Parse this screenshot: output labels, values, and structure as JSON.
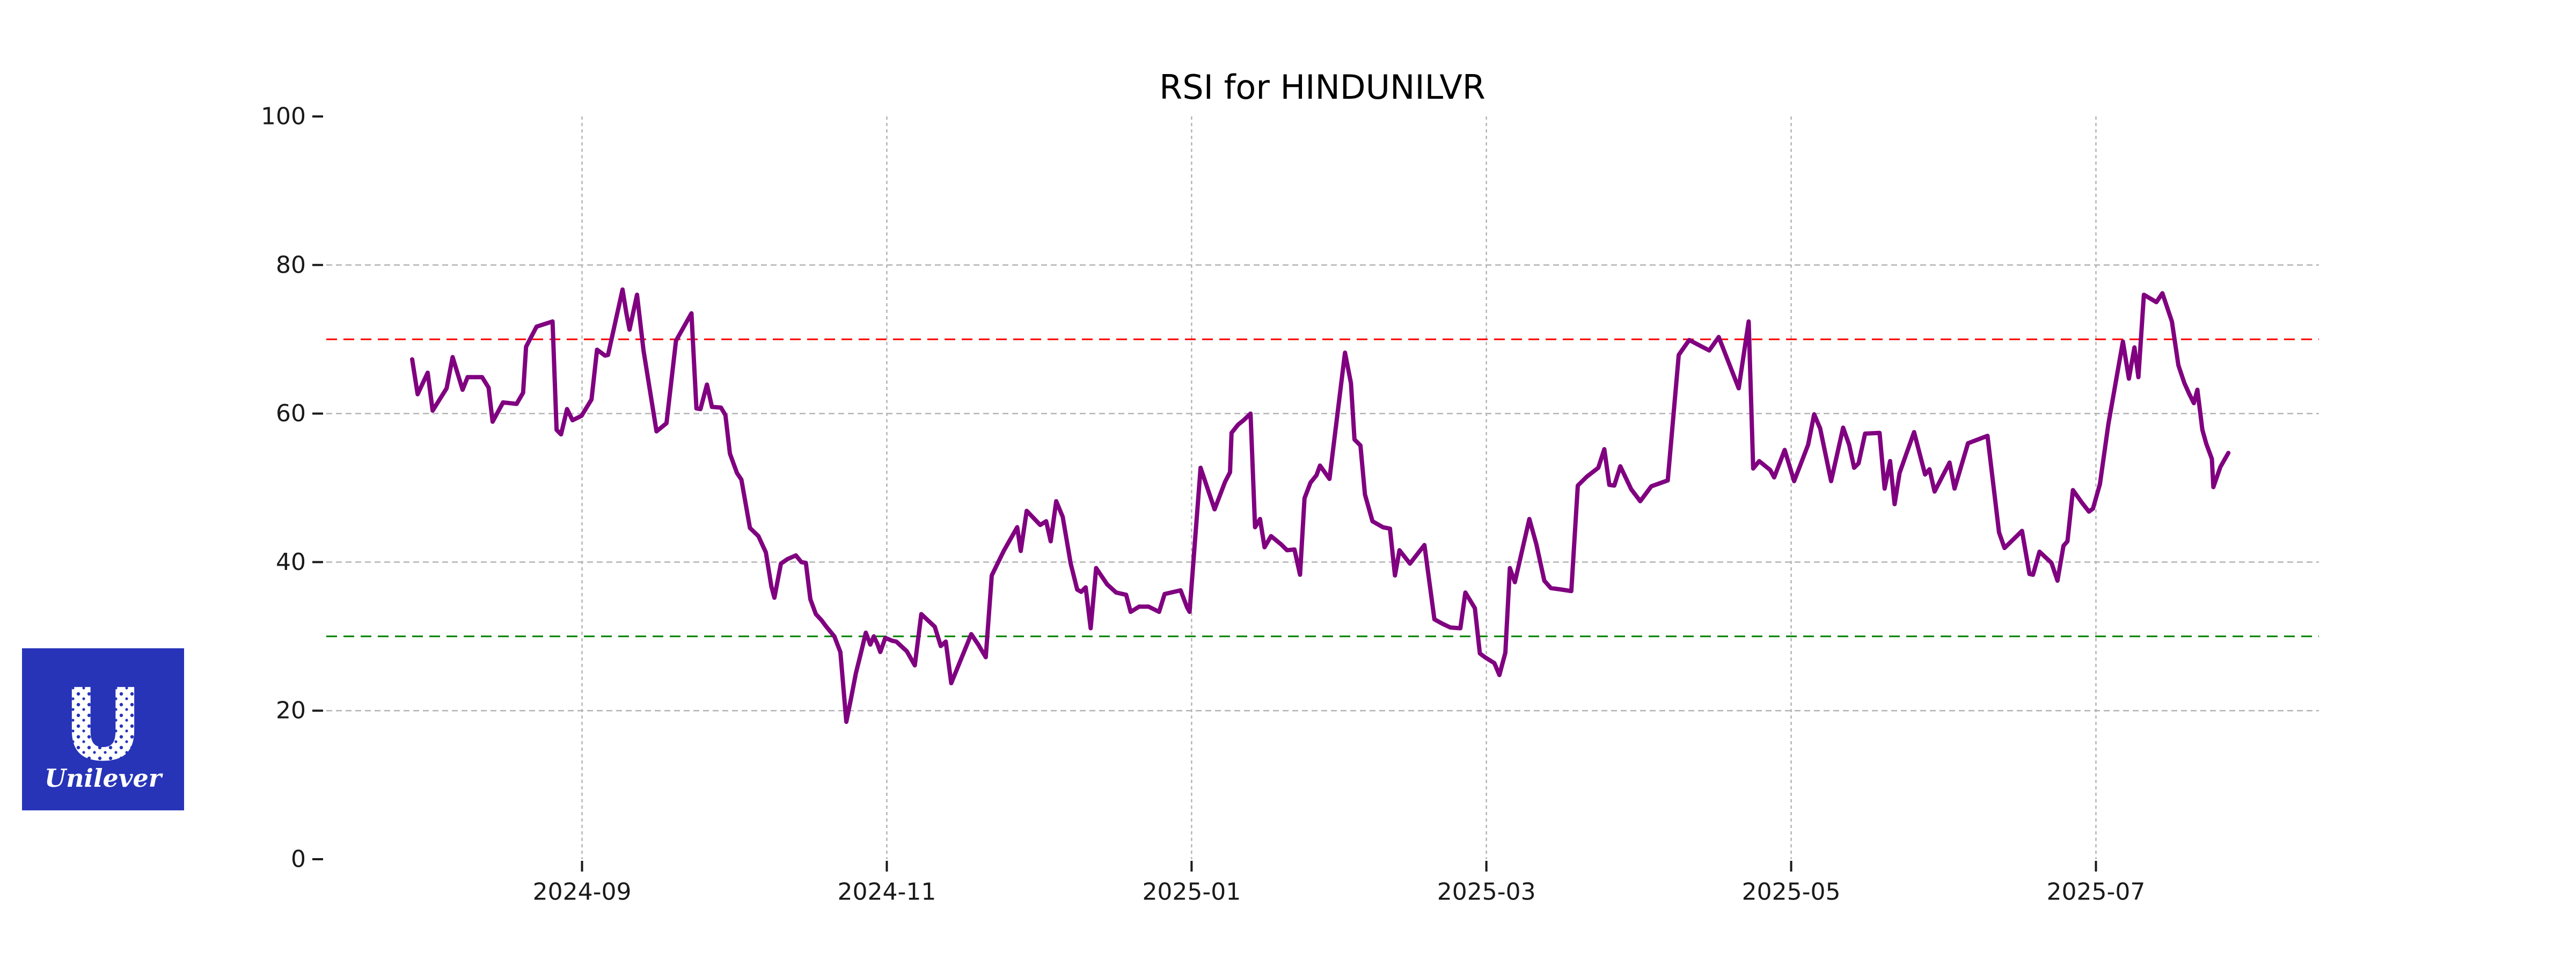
{
  "header": {
    "title": "RSI for HINDUNILVR"
  },
  "chart_data": {
    "type": "line",
    "title": "RSI for HINDUNILVR",
    "xlabel": "",
    "ylabel": "",
    "ylim": [
      0,
      100
    ],
    "yticks": [
      0,
      20,
      40,
      60,
      80,
      100
    ],
    "ygrid_values": [
      20,
      40,
      60,
      80
    ],
    "grid": true,
    "grid_color": "#b4b4b4",
    "legend_position": "none",
    "x_axis": {
      "unit": "days since 2024-07-29",
      "start_date": "2024-07-29",
      "end_date": "2025-07-27"
    },
    "xticks": [
      {
        "label": "2024-09",
        "day": 34
      },
      {
        "label": "2024-11",
        "day": 95
      },
      {
        "label": "2025-01",
        "day": 156
      },
      {
        "label": "2025-03",
        "day": 215
      },
      {
        "label": "2025-05",
        "day": 276
      },
      {
        "label": "2025-07",
        "day": 337
      }
    ],
    "reference_lines": [
      {
        "value": 70,
        "color": "#ff0000",
        "style": "dashed",
        "meaning": "overbought"
      },
      {
        "value": 30,
        "color": "#008000",
        "style": "dashed",
        "meaning": "oversold"
      }
    ],
    "series": [
      {
        "name": "RSI",
        "color": "#800080",
        "points": [
          [
            0,
            67.3
          ],
          [
            1.1,
            62.6
          ],
          [
            3.1,
            65.5
          ],
          [
            4.1,
            60.4
          ],
          [
            6.9,
            63.4
          ],
          [
            8.1,
            67.6
          ],
          [
            10.1,
            63.2
          ],
          [
            11.1,
            64.9
          ],
          [
            14,
            64.9
          ],
          [
            15.3,
            63.5
          ],
          [
            16.1,
            58.9
          ],
          [
            18.2,
            61.5
          ],
          [
            20.9,
            61.3
          ],
          [
            22.2,
            62.8
          ],
          [
            22.8,
            69
          ],
          [
            24.9,
            71.7
          ],
          [
            28.1,
            72.4
          ],
          [
            28.9,
            57.8
          ],
          [
            29.8,
            57.2
          ],
          [
            31,
            60.6
          ],
          [
            32.1,
            59.1
          ],
          [
            33.9,
            59.7
          ],
          [
            35.9,
            61.9
          ],
          [
            37,
            68.6
          ],
          [
            38.6,
            67.8
          ],
          [
            39.2,
            67.9
          ],
          [
            42.1,
            76.7
          ],
          [
            42.9,
            73.4
          ],
          [
            43.5,
            71.3
          ],
          [
            45,
            76
          ],
          [
            46.3,
            68.5
          ],
          [
            48.9,
            57.6
          ],
          [
            50.9,
            58.7
          ],
          [
            52.8,
            69.8
          ],
          [
            55.9,
            73.5
          ],
          [
            56.9,
            60.7
          ],
          [
            57.7,
            60.6
          ],
          [
            59,
            63.9
          ],
          [
            60,
            60.9
          ],
          [
            61.8,
            60.8
          ],
          [
            62.7,
            59.8
          ],
          [
            63.6,
            54.6
          ],
          [
            65,
            52
          ],
          [
            65.9,
            51.1
          ],
          [
            67.6,
            44.6
          ],
          [
            69.3,
            43.5
          ],
          [
            70.8,
            41.3
          ],
          [
            71.9,
            36.7
          ],
          [
            72.5,
            35.2
          ],
          [
            73.8,
            39.8
          ],
          [
            75.1,
            40.4
          ],
          [
            76.8,
            40.9
          ],
          [
            77.9,
            40
          ],
          [
            78.8,
            39.9
          ],
          [
            79.7,
            35
          ],
          [
            80.8,
            33
          ],
          [
            81.9,
            32.2
          ],
          [
            82.9,
            31.3
          ],
          [
            84.5,
            30
          ],
          [
            85.7,
            27.9
          ],
          [
            86.9,
            18.5
          ],
          [
            87.8,
            21.5
          ],
          [
            88.8,
            25
          ],
          [
            89.9,
            28
          ],
          [
            90.8,
            30.5
          ],
          [
            91.7,
            28.9
          ],
          [
            92.4,
            30
          ],
          [
            93.1,
            29
          ],
          [
            93.7,
            27.9
          ],
          [
            94.7,
            29.8
          ],
          [
            96.1,
            29.4
          ],
          [
            96.9,
            29.3
          ],
          [
            99,
            28
          ],
          [
            100.6,
            26.1
          ],
          [
            101.9,
            33
          ],
          [
            104.6,
            31.3
          ],
          [
            105.8,
            28.7
          ],
          [
            106.8,
            29.3
          ],
          [
            107.9,
            23.7
          ],
          [
            111.9,
            30.3
          ],
          [
            113.3,
            28.9
          ],
          [
            114.8,
            27.2
          ],
          [
            116,
            38.2
          ],
          [
            118.4,
            41.5
          ],
          [
            121.1,
            44.7
          ],
          [
            121.8,
            41.5
          ],
          [
            123,
            46.9
          ],
          [
            125.7,
            45
          ],
          [
            126.9,
            45.5
          ],
          [
            127.8,
            42.8
          ],
          [
            128.9,
            48.2
          ],
          [
            130.2,
            46.1
          ],
          [
            131.8,
            39.8
          ],
          [
            133.1,
            36.3
          ],
          [
            133.9,
            36
          ],
          [
            134.8,
            36.6
          ],
          [
            135.8,
            31.1
          ],
          [
            136.9,
            39.2
          ],
          [
            139.1,
            37
          ],
          [
            140.9,
            35.9
          ],
          [
            142.9,
            35.6
          ],
          [
            143.8,
            33.3
          ],
          [
            145.5,
            34
          ],
          [
            147.4,
            34
          ],
          [
            149.5,
            33.3
          ],
          [
            150.6,
            35.7
          ],
          [
            153.8,
            36.2
          ],
          [
            155.1,
            33.9
          ],
          [
            155.6,
            33.3
          ],
          [
            157.8,
            52.7
          ],
          [
            160.6,
            47.1
          ],
          [
            162.7,
            50.8
          ],
          [
            163.7,
            52.1
          ],
          [
            164,
            57.4
          ],
          [
            165.3,
            58.5
          ],
          [
            166.4,
            59.1
          ],
          [
            167.8,
            60
          ],
          [
            168.7,
            44.7
          ],
          [
            169.7,
            45.8
          ],
          [
            170.6,
            42
          ],
          [
            171.9,
            43.5
          ],
          [
            173.9,
            42.4
          ],
          [
            175.1,
            41.6
          ],
          [
            176.6,
            41.7
          ],
          [
            177.7,
            38.3
          ],
          [
            178.6,
            48.6
          ],
          [
            179.8,
            50.7
          ],
          [
            181,
            51.7
          ],
          [
            181.7,
            53
          ],
          [
            183.6,
            51.2
          ],
          [
            186.7,
            68.2
          ],
          [
            187.9,
            64.1
          ],
          [
            188.6,
            56.5
          ],
          [
            189.8,
            55.7
          ],
          [
            190.7,
            49.1
          ],
          [
            192.2,
            45.5
          ],
          [
            194.3,
            44.7
          ],
          [
            195.7,
            44.5
          ],
          [
            196.7,
            38.2
          ],
          [
            197.6,
            41.6
          ],
          [
            199.7,
            39.8
          ],
          [
            202.6,
            42.3
          ],
          [
            204.6,
            32.3
          ],
          [
            206.2,
            31.7
          ],
          [
            207.8,
            31.2
          ],
          [
            209.8,
            31.1
          ],
          [
            210.8,
            35.9
          ],
          [
            212.7,
            33.8
          ],
          [
            213.7,
            27.7
          ],
          [
            214.7,
            27.2
          ],
          [
            216.6,
            26.4
          ],
          [
            217.6,
            24.8
          ],
          [
            218.8,
            27.8
          ],
          [
            219.7,
            39.2
          ],
          [
            220.7,
            37.3
          ],
          [
            223.6,
            45.8
          ],
          [
            225,
            42.4
          ],
          [
            226.6,
            37.5
          ],
          [
            227.9,
            36.5
          ],
          [
            230.1,
            36.3
          ],
          [
            232,
            36.1
          ],
          [
            233.3,
            50.3
          ],
          [
            235.1,
            51.5
          ],
          [
            237.4,
            52.7
          ],
          [
            238.6,
            55.2
          ],
          [
            239.6,
            50.4
          ],
          [
            240.6,
            50.3
          ],
          [
            241.8,
            52.9
          ],
          [
            244,
            49.8
          ],
          [
            245.8,
            48.2
          ],
          [
            248,
            50.2
          ],
          [
            251.3,
            51
          ],
          [
            253.5,
            67.9
          ],
          [
            255.6,
            69.9
          ],
          [
            259.6,
            68.5
          ],
          [
            261.5,
            70.3
          ],
          [
            265.5,
            63.4
          ],
          [
            267.5,
            72.4
          ],
          [
            268.4,
            52.6
          ],
          [
            269.6,
            53.6
          ],
          [
            271.8,
            52.4
          ],
          [
            272.6,
            51.4
          ],
          [
            274.7,
            55.1
          ],
          [
            276.6,
            50.9
          ],
          [
            279.4,
            55.8
          ],
          [
            280.6,
            59.9
          ],
          [
            281.8,
            58
          ],
          [
            284,
            50.9
          ],
          [
            286.4,
            58.1
          ],
          [
            287.6,
            55.8
          ],
          [
            288.6,
            52.7
          ],
          [
            289.5,
            53.3
          ],
          [
            290.8,
            57.3
          ],
          [
            293.7,
            57.4
          ],
          [
            294.7,
            49.9
          ],
          [
            295.8,
            53.6
          ],
          [
            296.7,
            47.8
          ],
          [
            297.7,
            52
          ],
          [
            298.8,
            54.1
          ],
          [
            300.6,
            57.5
          ],
          [
            302.8,
            51.8
          ],
          [
            303.7,
            52.5
          ],
          [
            304.7,
            49.5
          ],
          [
            307.7,
            53.4
          ],
          [
            308.7,
            49.9
          ],
          [
            311.4,
            56
          ],
          [
            315.3,
            57
          ],
          [
            317.6,
            44
          ],
          [
            318.7,
            41.9
          ],
          [
            322.2,
            44.2
          ],
          [
            323.7,
            38.4
          ],
          [
            324.4,
            38.3
          ],
          [
            325.7,
            41.4
          ],
          [
            328.1,
            39.9
          ],
          [
            329.3,
            37.5
          ],
          [
            330.5,
            42.2
          ],
          [
            331.3,
            42.8
          ],
          [
            332.4,
            49.7
          ],
          [
            334.2,
            48
          ],
          [
            335.6,
            46.8
          ],
          [
            336.4,
            47.2
          ],
          [
            337.8,
            50.5
          ],
          [
            339.5,
            58.6
          ],
          [
            342.4,
            69.7
          ],
          [
            343.6,
            64.7
          ],
          [
            344.7,
            68.9
          ],
          [
            345.5,
            64.9
          ],
          [
            346.6,
            76
          ],
          [
            349.1,
            75
          ],
          [
            350.3,
            76.2
          ],
          [
            352.2,
            72.4
          ],
          [
            353.5,
            66.5
          ],
          [
            354.7,
            64.1
          ],
          [
            355.7,
            62.6
          ],
          [
            356.6,
            61.4
          ],
          [
            357.3,
            63.2
          ],
          [
            358.3,
            57.8
          ],
          [
            359.1,
            55.9
          ],
          [
            360.2,
            53.9
          ],
          [
            360.5,
            50.1
          ],
          [
            361.9,
            52.8
          ],
          [
            363.5,
            54.7
          ]
        ]
      }
    ]
  },
  "logo": {
    "brand": "Unilever",
    "monogram": "U",
    "wordmark": "Unilever",
    "bg_color": "#2734B8",
    "fg_color": "#ffffff"
  }
}
